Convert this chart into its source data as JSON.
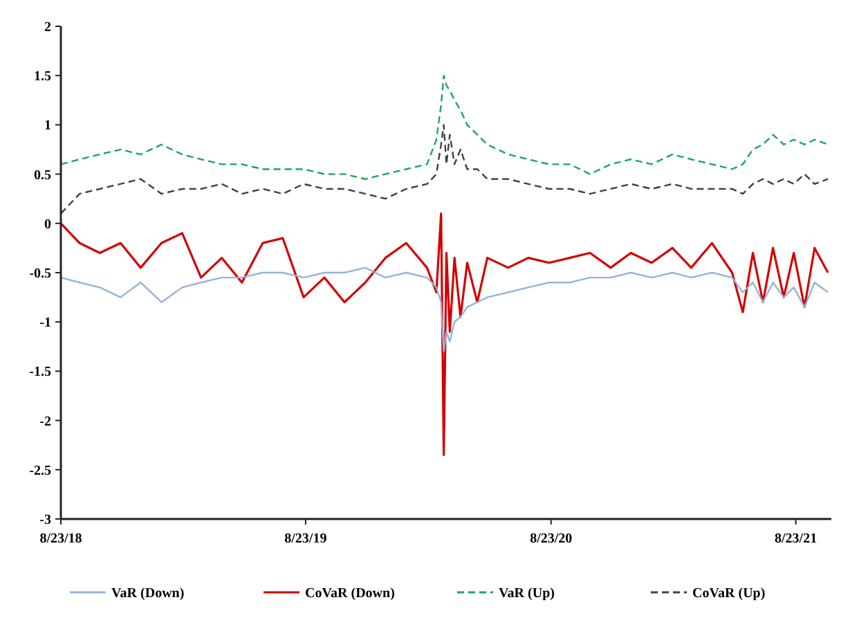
{
  "chart_data": {
    "type": "line",
    "x": [
      "2018-08-23",
      "2018-09-20",
      "2018-10-20",
      "2018-11-20",
      "2018-12-20",
      "2019-01-20",
      "2019-02-20",
      "2019-03-20",
      "2019-04-20",
      "2019-05-20",
      "2019-06-20",
      "2019-07-20",
      "2019-08-20",
      "2019-09-20",
      "2019-10-20",
      "2019-11-20",
      "2019-12-20",
      "2020-01-20",
      "2020-02-20",
      "2020-03-05",
      "2020-03-12",
      "2020-03-16",
      "2020-03-20",
      "2020-03-25",
      "2020-04-01",
      "2020-04-10",
      "2020-04-20",
      "2020-05-05",
      "2020-05-20",
      "2020-06-20",
      "2020-07-20",
      "2020-08-20",
      "2020-09-20",
      "2020-10-20",
      "2020-11-20",
      "2020-12-20",
      "2021-01-20",
      "2021-02-20",
      "2021-03-20",
      "2021-04-20",
      "2021-05-20",
      "2021-06-05",
      "2021-06-20",
      "2021-07-05",
      "2021-07-20",
      "2021-08-05",
      "2021-08-20",
      "2021-09-05",
      "2021-09-20",
      "2021-10-10"
    ],
    "xlim": [
      "2018-08-23",
      "2021-10-15"
    ],
    "xticks": [
      {
        "value": "2018-08-23",
        "label": "8/23/18"
      },
      {
        "value": "2019-08-23",
        "label": "8/23/19"
      },
      {
        "value": "2020-08-23",
        "label": "8/23/20"
      },
      {
        "value": "2021-08-23",
        "label": "8/23/21"
      }
    ],
    "ylim": [
      -3,
      2
    ],
    "yticks": [
      -3,
      -2.5,
      -2,
      -1.5,
      -1,
      -0.5,
      0,
      0.5,
      1,
      1.5,
      2
    ],
    "grid": false,
    "legend": "bottom",
    "marker": "none",
    "series": [
      {
        "name": "VaR (Down)",
        "color": "#94b4dc",
        "line_style": "solid",
        "values": [
          -0.55,
          -0.6,
          -0.65,
          -0.75,
          -0.6,
          -0.8,
          -0.65,
          -0.6,
          -0.55,
          -0.55,
          -0.5,
          -0.5,
          -0.55,
          -0.5,
          -0.5,
          -0.45,
          -0.55,
          -0.5,
          -0.55,
          -0.65,
          -0.8,
          -1.3,
          -1.1,
          -1.2,
          -1.0,
          -0.95,
          -0.85,
          -0.8,
          -0.75,
          -0.7,
          -0.65,
          -0.6,
          -0.6,
          -0.55,
          -0.55,
          -0.5,
          -0.55,
          -0.5,
          -0.55,
          -0.5,
          -0.55,
          -0.7,
          -0.6,
          -0.8,
          -0.6,
          -0.75,
          -0.65,
          -0.85,
          -0.6,
          -0.7
        ]
      },
      {
        "name": "CoVaR (Down)",
        "color": "#d40000",
        "line_style": "solid",
        "values": [
          0,
          -0.2,
          -0.3,
          -0.2,
          -0.45,
          -0.2,
          -0.1,
          -0.55,
          -0.35,
          -0.6,
          -0.2,
          -0.15,
          -0.75,
          -0.55,
          -0.8,
          -0.6,
          -0.35,
          -0.2,
          -0.45,
          -0.7,
          0.1,
          -2.35,
          -0.3,
          -1.1,
          -0.35,
          -0.95,
          -0.4,
          -0.8,
          -0.35,
          -0.45,
          -0.35,
          -0.4,
          -0.35,
          -0.3,
          -0.45,
          -0.3,
          -0.4,
          -0.25,
          -0.45,
          -0.2,
          -0.5,
          -0.9,
          -0.3,
          -0.8,
          -0.25,
          -0.75,
          -0.3,
          -0.85,
          -0.25,
          -0.5
        ]
      },
      {
        "name": "VaR (Up)",
        "color": "#1aa85a",
        "line_style": "dashed",
        "values": [
          0.6,
          0.65,
          0.7,
          0.75,
          0.7,
          0.8,
          0.7,
          0.65,
          0.6,
          0.6,
          0.55,
          0.55,
          0.55,
          0.5,
          0.5,
          0.45,
          0.5,
          0.55,
          0.6,
          0.85,
          1.2,
          1.5,
          1.4,
          1.35,
          1.25,
          1.15,
          1.0,
          0.9,
          0.8,
          0.7,
          0.65,
          0.6,
          0.6,
          0.5,
          0.6,
          0.65,
          0.6,
          0.7,
          0.65,
          0.6,
          0.55,
          0.6,
          0.75,
          0.8,
          0.9,
          0.8,
          0.85,
          0.8,
          0.85,
          0.8
        ]
      },
      {
        "name": "CoVaR (Up)",
        "color": "#404040",
        "line_style": "dashed",
        "values": [
          0.1,
          0.3,
          0.35,
          0.4,
          0.45,
          0.3,
          0.35,
          0.35,
          0.4,
          0.3,
          0.35,
          0.3,
          0.4,
          0.35,
          0.35,
          0.3,
          0.25,
          0.35,
          0.4,
          0.5,
          0.8,
          1.0,
          0.6,
          0.9,
          0.6,
          0.75,
          0.55,
          0.55,
          0.45,
          0.45,
          0.4,
          0.35,
          0.35,
          0.3,
          0.35,
          0.4,
          0.35,
          0.4,
          0.35,
          0.35,
          0.35,
          0.3,
          0.4,
          0.45,
          0.4,
          0.45,
          0.4,
          0.5,
          0.4,
          0.45
        ]
      }
    ]
  }
}
